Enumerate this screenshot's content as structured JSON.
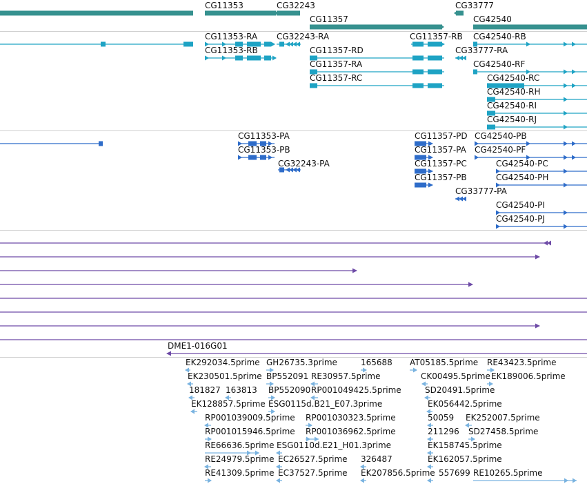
{
  "colors": {
    "gene": "#36918f",
    "transcript": "#1ea3c4",
    "protein": "#2e6cc9",
    "clone": "#6d4aa6",
    "est": "#7ab3e0",
    "divider": "#cfcfcf"
  },
  "tracks": {
    "genes": [
      "CG11353",
      "CG32243",
      "CG11357",
      "CG33777",
      "CG42540"
    ],
    "transcripts": [
      "CG11353-RA",
      "CG11353-RB",
      "CG32243-RA",
      "CG11357-RB",
      "CG11357-RD",
      "CG11357-RA",
      "CG11357-RC",
      "CG33777-RA",
      "CG42540-RB",
      "CG42540-RF",
      "CG42540-RC",
      "CG42540-RH",
      "CG42540-RI",
      "CG42540-RJ"
    ],
    "proteins": [
      "CG11353-PA",
      "CG11353-PB",
      "CG32243-PA",
      "CG11357-PD",
      "CG11357-PA",
      "CG11357-PC",
      "CG11357-PB",
      "CG33777-PA",
      "CG42540-PB",
      "CG42540-PF",
      "CG42540-PC",
      "CG42540-PH",
      "CG42540-PI",
      "CG42540-PJ"
    ],
    "clones": [
      "DME1-016G01"
    ],
    "ests": [
      "EK292034.5prime",
      "GH26735.3prime",
      "165688",
      "AT05185.5prime",
      "RE43423.5prime",
      "EK230501.5prime",
      "BP552091",
      "RE30957.5prime",
      "CK00495.5prime",
      "EK189006.5prime",
      "181827",
      "163813",
      "BP552090",
      "RP001049425.5prime",
      "SD20491.5prime",
      "EK128857.5prime",
      "ESG0115d.B21_E07.3prime",
      "EK056442.5prime",
      "RP001039009.5prime",
      "RP001030323.5prime",
      "50059",
      "EK252007.5prime",
      "RP001015946.5prime",
      "RP001036962.5prime",
      "211296",
      "SD27458.5prime",
      "RE66636.5prime",
      "ESG0110d.E21_H01.3prime",
      "EK158745.5prime",
      "RE24979.5prime",
      "EC26527.5prime",
      "326487",
      "EK162057.5prime",
      "RE41309.5prime",
      "EC37527.5prime",
      "EK207856.5prime",
      "557699",
      "RE10265.5prime"
    ]
  }
}
